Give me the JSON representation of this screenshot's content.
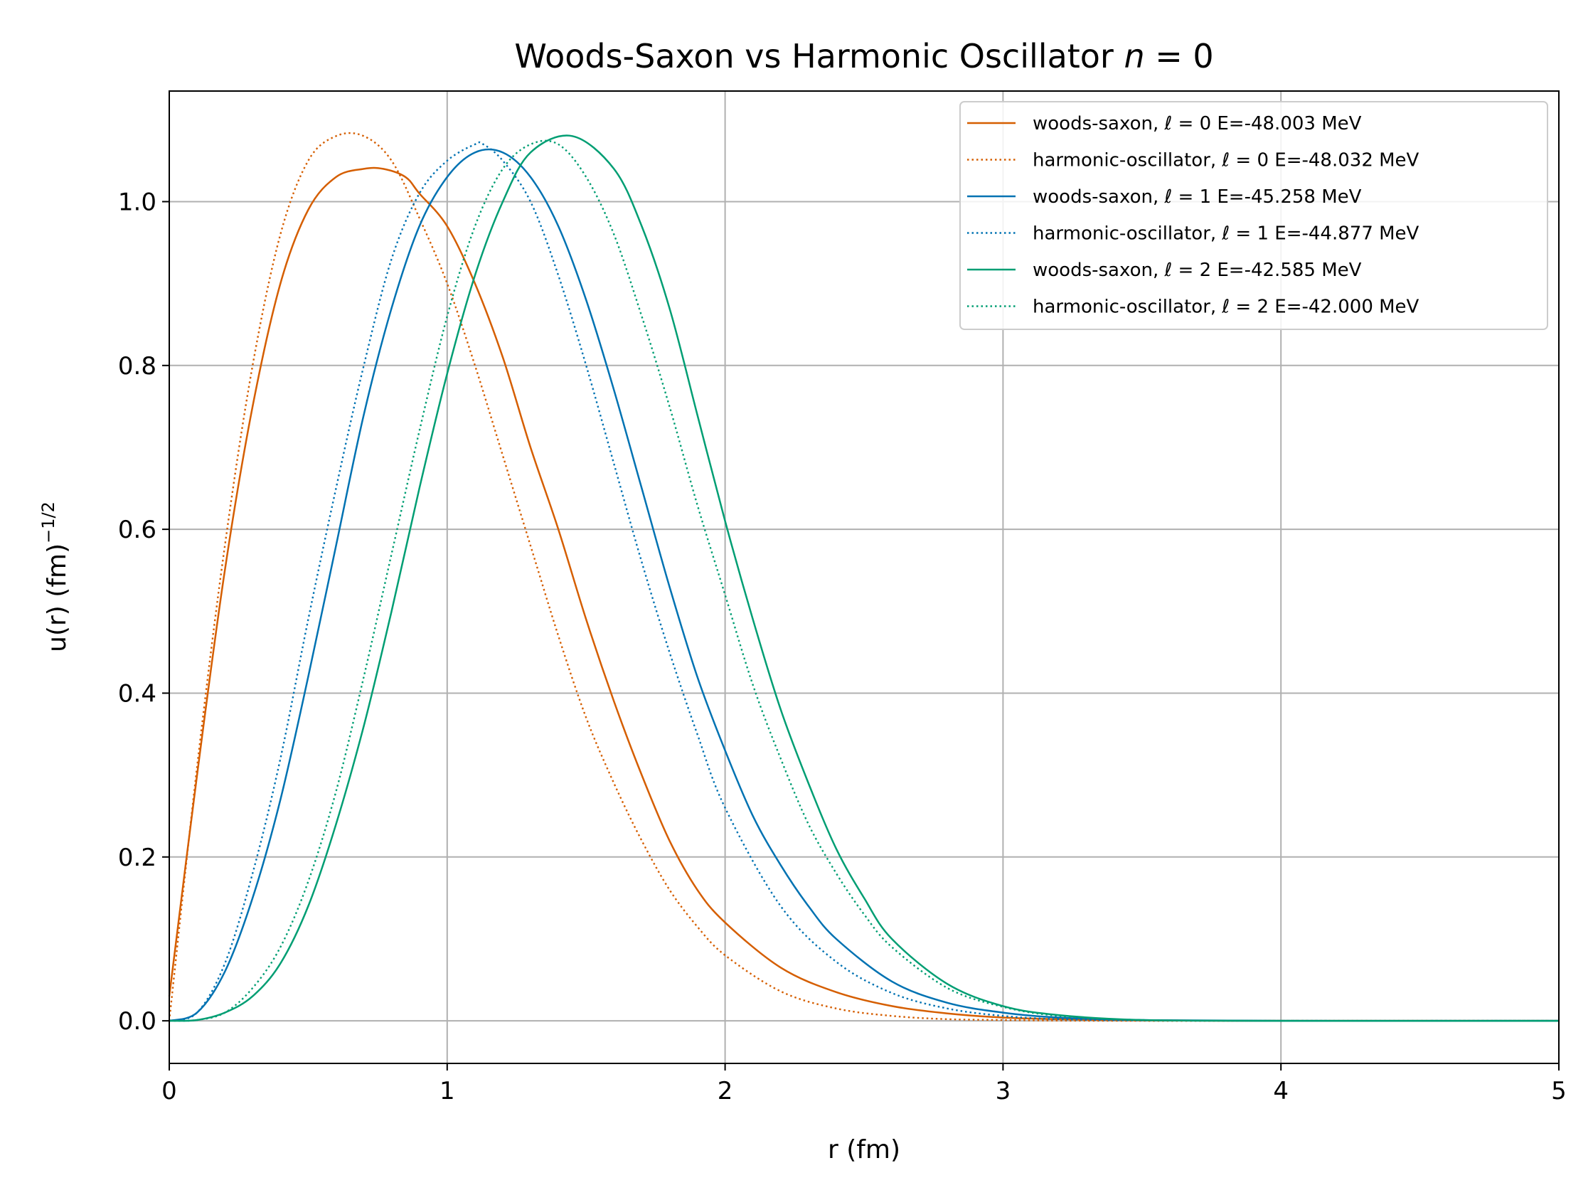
{
  "chart_data": {
    "type": "line",
    "title": "Woods-Saxon vs Harmonic Oscillator n = 0",
    "title_parts": {
      "main": "Woods-Saxon vs Harmonic Oscillator ",
      "var": "n",
      "rest": " = 0"
    },
    "xlabel": "r (fm)",
    "ylabel": "u(r) (fm)",
    "ylabel_exponent": "−1/2",
    "xlim": [
      0,
      5
    ],
    "ylim": [
      -0.052,
      1.135
    ],
    "xticks": [
      0,
      1,
      2,
      3,
      4,
      5
    ],
    "xtick_labels": [
      "0",
      "1",
      "2",
      "3",
      "4",
      "5"
    ],
    "yticks": [
      0.0,
      0.2,
      0.4,
      0.6,
      0.8,
      1.0
    ],
    "ytick_labels": [
      "0.0",
      "0.2",
      "0.4",
      "0.6",
      "0.8",
      "1.0"
    ],
    "grid": true,
    "legend_position": "top-right",
    "series": [
      {
        "name": "woods-saxon, ℓ = 0 E=-48.003 MeV",
        "legend": {
          "pre": "woods-saxon, ",
          "ell": "ℓ",
          "post": " = 0 E=-48.003 MeV"
        },
        "color": "#d55e00",
        "style": "solid",
        "x": [
          0,
          0.1,
          0.2,
          0.3,
          0.4,
          0.5,
          0.6,
          0.7,
          0.77,
          0.85,
          0.9,
          1.0,
          1.1,
          1.2,
          1.3,
          1.4,
          1.5,
          1.6,
          1.7,
          1.8,
          1.9,
          2.0,
          2.2,
          2.4,
          2.6,
          2.8,
          3.0,
          3.2,
          3.5,
          4.0,
          4.5,
          5.0
        ],
        "y": [
          0.03,
          0.3,
          0.55,
          0.75,
          0.9,
          0.99,
          1.03,
          1.04,
          1.04,
          1.03,
          1.01,
          0.97,
          0.9,
          0.81,
          0.7,
          0.6,
          0.49,
          0.39,
          0.3,
          0.22,
          0.16,
          0.12,
          0.065,
          0.035,
          0.018,
          0.009,
          0.004,
          0.002,
          0.0005,
          0,
          0,
          0
        ]
      },
      {
        "name": "harmonic-oscillator, ℓ = 0 E=-48.032 MeV",
        "legend": {
          "pre": "harmonic-oscillator, ",
          "ell": "ℓ",
          "post": " = 0 E=-48.032 MeV"
        },
        "color": "#d55e00",
        "style": "dotted",
        "x": [
          0,
          0.1,
          0.2,
          0.3,
          0.4,
          0.5,
          0.6,
          0.7,
          0.8,
          0.9,
          1.0,
          1.1,
          1.2,
          1.3,
          1.4,
          1.5,
          1.6,
          1.7,
          1.8,
          1.9,
          2.0,
          2.2,
          2.4,
          2.6,
          2.8,
          3.0,
          3.2,
          3.5,
          4.0,
          5.0
        ],
        "y": [
          0,
          0.31,
          0.58,
          0.8,
          0.96,
          1.05,
          1.08,
          1.08,
          1.05,
          0.98,
          0.9,
          0.8,
          0.69,
          0.58,
          0.47,
          0.37,
          0.29,
          0.22,
          0.16,
          0.115,
          0.08,
          0.036,
          0.015,
          0.006,
          0.002,
          0.001,
          0.0003,
          0,
          0,
          0
        ]
      },
      {
        "name": "woods-saxon, ℓ = 1 E=-45.258 MeV",
        "legend": {
          "pre": "woods-saxon, ",
          "ell": "ℓ",
          "post": " = 1 E=-45.258 MeV"
        },
        "color": "#0072b2",
        "style": "solid",
        "x": [
          0,
          0.1,
          0.2,
          0.3,
          0.4,
          0.5,
          0.6,
          0.7,
          0.8,
          0.9,
          1.0,
          1.1,
          1.2,
          1.3,
          1.4,
          1.5,
          1.6,
          1.7,
          1.8,
          1.9,
          2.0,
          2.1,
          2.2,
          2.3,
          2.4,
          2.6,
          2.8,
          3.0,
          3.2,
          3.5,
          4.0,
          5.0
        ],
        "y": [
          0,
          0.01,
          0.06,
          0.15,
          0.27,
          0.42,
          0.58,
          0.74,
          0.87,
          0.97,
          1.03,
          1.06,
          1.06,
          1.03,
          0.97,
          0.88,
          0.77,
          0.65,
          0.53,
          0.42,
          0.33,
          0.25,
          0.19,
          0.14,
          0.1,
          0.048,
          0.022,
          0.01,
          0.004,
          0.001,
          0,
          0
        ]
      },
      {
        "name": "harmonic-oscillator, ℓ = 1 E=-44.877 MeV",
        "legend": {
          "pre": "harmonic-oscillator, ",
          "ell": "ℓ",
          "post": " = 1 E=-44.877 MeV"
        },
        "color": "#0072b2",
        "style": "dotted",
        "x": [
          0,
          0.1,
          0.2,
          0.3,
          0.4,
          0.5,
          0.6,
          0.7,
          0.8,
          0.9,
          1.0,
          1.1,
          1.13,
          1.2,
          1.3,
          1.4,
          1.5,
          1.6,
          1.7,
          1.8,
          1.9,
          2.0,
          2.2,
          2.4,
          2.6,
          2.8,
          3.0,
          3.2,
          3.5,
          4.0,
          5.0
        ],
        "y": [
          0,
          0.01,
          0.07,
          0.18,
          0.32,
          0.49,
          0.65,
          0.8,
          0.93,
          1.01,
          1.05,
          1.07,
          1.07,
          1.05,
          1.0,
          0.91,
          0.8,
          0.68,
          0.56,
          0.45,
          0.35,
          0.26,
          0.14,
          0.072,
          0.034,
          0.015,
          0.006,
          0.002,
          0.0005,
          0,
          0
        ]
      },
      {
        "name": "woods-saxon, ℓ = 2 E=-42.585 MeV",
        "legend": {
          "pre": "woods-saxon, ",
          "ell": "ℓ",
          "post": " = 2 E=-42.585 MeV"
        },
        "color": "#009e73",
        "style": "solid",
        "x": [
          0,
          0.1,
          0.2,
          0.3,
          0.4,
          0.5,
          0.6,
          0.7,
          0.8,
          0.9,
          1.0,
          1.1,
          1.2,
          1.3,
          1.45,
          1.6,
          1.7,
          1.8,
          1.9,
          2.0,
          2.1,
          2.2,
          2.3,
          2.4,
          2.5,
          2.6,
          2.8,
          3.0,
          3.2,
          3.5,
          4.0,
          5.0
        ],
        "y": [
          0,
          0.001,
          0.01,
          0.03,
          0.07,
          0.14,
          0.24,
          0.36,
          0.5,
          0.65,
          0.79,
          0.91,
          1.0,
          1.06,
          1.08,
          1.04,
          0.97,
          0.87,
          0.74,
          0.61,
          0.49,
          0.38,
          0.29,
          0.21,
          0.15,
          0.1,
          0.045,
          0.018,
          0.007,
          0.001,
          0,
          0
        ]
      },
      {
        "name": "harmonic-oscillator, ℓ = 2 E=-42.000 MeV",
        "legend": {
          "pre": "harmonic-oscillator, ",
          "ell": "ℓ",
          "post": " = 2 E=-42.000 MeV"
        },
        "color": "#009e73",
        "style": "dotted",
        "x": [
          0,
          0.1,
          0.2,
          0.3,
          0.4,
          0.5,
          0.6,
          0.7,
          0.8,
          0.9,
          1.0,
          1.1,
          1.2,
          1.3,
          1.4,
          1.5,
          1.6,
          1.7,
          1.8,
          1.9,
          2.0,
          2.1,
          2.2,
          2.3,
          2.4,
          2.5,
          2.6,
          2.8,
          3.0,
          3.2,
          3.5,
          4.0,
          5.0
        ],
        "y": [
          0,
          0.001,
          0.01,
          0.04,
          0.09,
          0.17,
          0.28,
          0.42,
          0.57,
          0.72,
          0.86,
          0.97,
          1.04,
          1.07,
          1.07,
          1.03,
          0.96,
          0.86,
          0.75,
          0.63,
          0.52,
          0.41,
          0.32,
          0.24,
          0.18,
          0.13,
          0.09,
          0.04,
          0.017,
          0.006,
          0.001,
          0,
          0
        ]
      }
    ]
  }
}
